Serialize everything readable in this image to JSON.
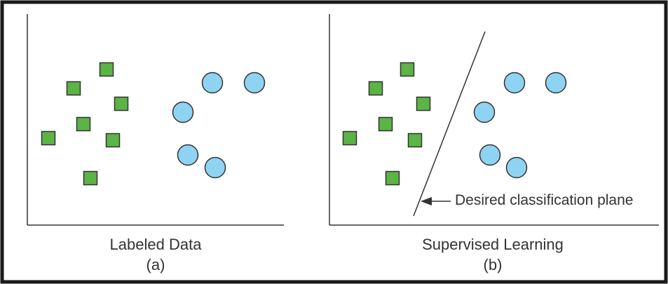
{
  "colors": {
    "square_fill": "#5cb346",
    "circle_fill": "#8fd3f2",
    "stroke": "#333333",
    "frame": "#1a1a1a"
  },
  "panel_a": {
    "title": "Labeled Data",
    "letter": "(a)"
  },
  "panel_b": {
    "title": "Supervised Learning",
    "letter": "(b)",
    "annotation": "Desired classification plane"
  }
}
